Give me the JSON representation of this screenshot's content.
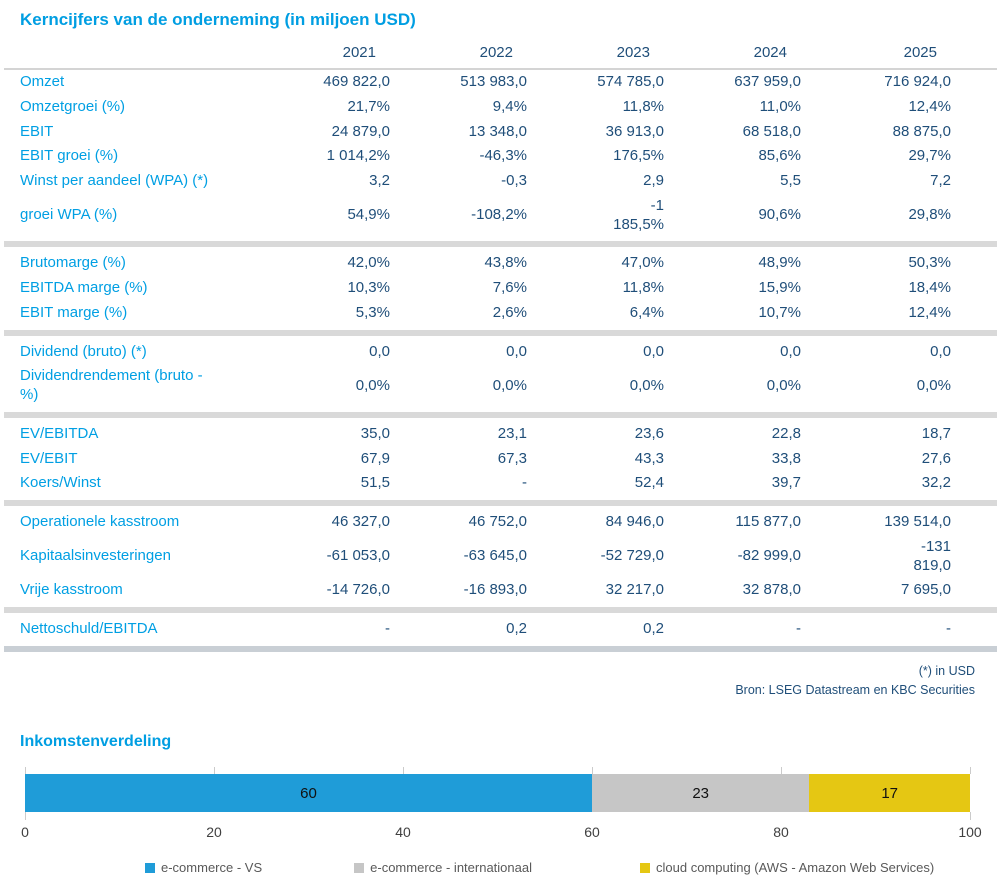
{
  "table": {
    "title": "Kerncijfers van de onderneming (in miljoen USD)",
    "years": [
      "2021",
      "2022",
      "2023",
      "2024",
      "2025"
    ],
    "sections": [
      {
        "rows": [
          {
            "label": "Omzet",
            "values": [
              "469 822,0",
              "513 983,0",
              "574 785,0",
              "637 959,0",
              "716 924,0"
            ]
          },
          {
            "label": "Omzetgroei (%)",
            "values": [
              "21,7%",
              "9,4%",
              "11,8%",
              "11,0%",
              "12,4%"
            ]
          },
          {
            "label": "EBIT",
            "values": [
              "24 879,0",
              "13 348,0",
              "36 913,0",
              "68 518,0",
              "88 875,0"
            ]
          },
          {
            "label": "EBIT groei (%)",
            "values": [
              "1 014,2%",
              "-46,3%",
              "176,5%",
              "85,6%",
              "29,7%"
            ]
          },
          {
            "label": "Winst per aandeel (WPA) (*)",
            "values": [
              "3,2",
              "-0,3",
              "2,9",
              "5,5",
              "7,2"
            ]
          },
          {
            "label": "groei WPA (%)",
            "values": [
              "54,9%",
              "-108,2%",
              "-1\n185,5%",
              "90,6%",
              "29,8%"
            ]
          }
        ]
      },
      {
        "rows": [
          {
            "label": "Brutomarge (%)",
            "values": [
              "42,0%",
              "43,8%",
              "47,0%",
              "48,9%",
              "50,3%"
            ]
          },
          {
            "label": "EBITDA marge (%)",
            "values": [
              "10,3%",
              "7,6%",
              "11,8%",
              "15,9%",
              "18,4%"
            ]
          },
          {
            "label": "EBIT marge (%)",
            "values": [
              "5,3%",
              "2,6%",
              "6,4%",
              "10,7%",
              "12,4%"
            ]
          }
        ]
      },
      {
        "rows": [
          {
            "label": "Dividend (bruto) (*)",
            "values": [
              "0,0",
              "0,0",
              "0,0",
              "0,0",
              "0,0"
            ]
          },
          {
            "label": "Dividendrendement (bruto -\n%)",
            "values": [
              "0,0%",
              "0,0%",
              "0,0%",
              "0,0%",
              "0,0%"
            ]
          }
        ]
      },
      {
        "rows": [
          {
            "label": "EV/EBITDA",
            "values": [
              "35,0",
              "23,1",
              "23,6",
              "22,8",
              "18,7"
            ]
          },
          {
            "label": "EV/EBIT",
            "values": [
              "67,9",
              "67,3",
              "43,3",
              "33,8",
              "27,6"
            ]
          },
          {
            "label": "Koers/Winst",
            "values": [
              "51,5",
              "-",
              "52,4",
              "39,7",
              "32,2"
            ]
          }
        ]
      },
      {
        "rows": [
          {
            "label": "Operationele kasstroom",
            "values": [
              "46 327,0",
              "46 752,0",
              "84 946,0",
              "115 877,0",
              "139 514,0"
            ]
          },
          {
            "label": "Kapitaalsinvesteringen",
            "values": [
              "-61 053,0",
              "-63 645,0",
              "-52 729,0",
              "-82 999,0",
              "-131\n819,0"
            ]
          },
          {
            "label": "Vrije kasstroom",
            "values": [
              "-14 726,0",
              "-16 893,0",
              "32 217,0",
              "32 878,0",
              "7 695,0"
            ]
          }
        ]
      },
      {
        "rows": [
          {
            "label": "Nettoschuld/EBITDA",
            "values": [
              "-",
              "0,2",
              "0,2",
              "-",
              "-"
            ]
          }
        ]
      }
    ],
    "footnote": "(*) in USD",
    "source": "Bron: LSEG Datastream en KBC Securities"
  },
  "chart_data": {
    "type": "bar",
    "orientation": "horizontal-stacked",
    "title": "Inkomstenverdeling",
    "segments": [
      {
        "name": "e-commerce - VS",
        "value": 60,
        "color": "#1F9CD8"
      },
      {
        "name": "e-commerce - internationaal",
        "value": 23,
        "color": "#C6C6C6"
      },
      {
        "name": "cloud computing (AWS - Amazon Web Services)",
        "value": 17,
        "color": "#E5C713"
      }
    ],
    "xlim": [
      0,
      100
    ],
    "xticks": [
      0,
      20,
      40,
      60,
      80,
      100
    ],
    "grid": "vertical-ticks",
    "legend_position": "bottom"
  },
  "colors": {
    "accent_blue": "#009EE2",
    "value_navy": "#1F4E79",
    "divider_gray": "#D9D9D9",
    "final_divider": "#C9CFD5",
    "legend_text": "#595959"
  }
}
